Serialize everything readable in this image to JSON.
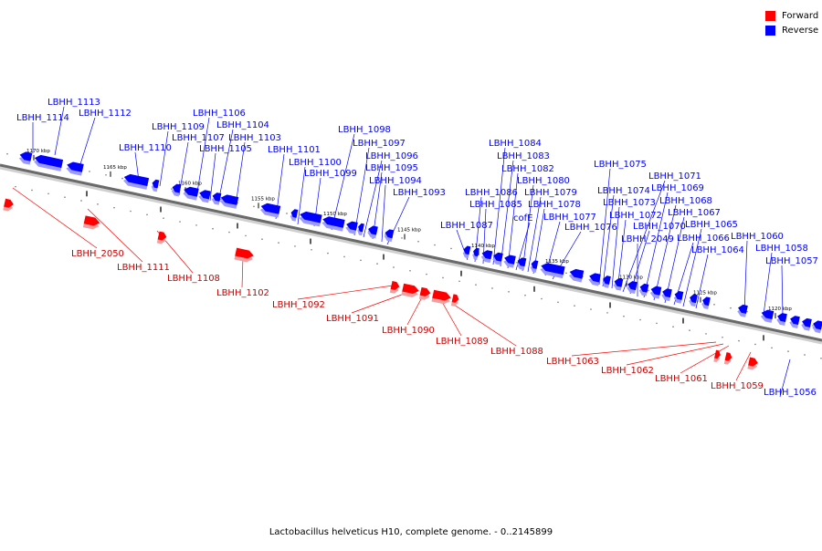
{
  "legend": {
    "forward": {
      "label": "Forward",
      "color": "#ff0000"
    },
    "reverse": {
      "label": "Reverse",
      "color": "#0000ff"
    }
  },
  "caption": "Lactobacillus helveticus H10, complete genome. - 0..2145899",
  "scale_ticks": [
    "1170 kbp",
    "1165 kbp",
    "1160 kbp",
    "1155 kbp",
    "1150 kbp",
    "1145 kbp",
    "1140 kbp",
    "1135 kbp",
    "1130 kbp",
    "1125 kbp",
    "1120 kbp"
  ],
  "reverse_genes": [
    "LBHH_1114",
    "LBHH_1113",
    "LBHH_1112",
    "LBHH_1110",
    "LBHH_1109",
    "LBHH_1107",
    "LBHH_1106",
    "LBHH_1105",
    "LBHH_1104",
    "LBHH_1103",
    "LBHH_1101",
    "LBHH_1100",
    "LBHH_1099",
    "LBHH_1098",
    "LBHH_1097",
    "LBHH_1096",
    "LBHH_1095",
    "LBHH_1094",
    "LBHH_1093",
    "LBHH_1087",
    "LBHH_1086",
    "LBHH_1085",
    "LBHH_1084",
    "LBHH_1083",
    "LBHH_1082",
    "cofE",
    "LBHH_1080",
    "LBHH_1079",
    "LBHH_1078",
    "LBHH_1077",
    "LBHH_1076",
    "LBHH_1075",
    "LBHH_1074",
    "LBHH_1073",
    "LBHH_1072",
    "LBHH_1071",
    "LBHH_1070",
    "LBHH_2049",
    "LBHH_1069",
    "LBHH_1068",
    "LBHH_1067",
    "LBHH_1066",
    "LBHH_1065",
    "LBHH_1064",
    "LBHH_1060",
    "LBHH_1058",
    "LBHH_1057",
    "LBHH_1056"
  ],
  "forward_genes": [
    "LBHH_2050",
    "LBHH_1111",
    "LBHH_1108",
    "LBHH_1102",
    "LBHH_1092",
    "LBHH_1091",
    "LBHH_1090",
    "LBHH_1089",
    "LBHH_1088",
    "LBHH_1063",
    "LBHH_1062",
    "LBHH_1061",
    "LBHH_1059"
  ]
}
